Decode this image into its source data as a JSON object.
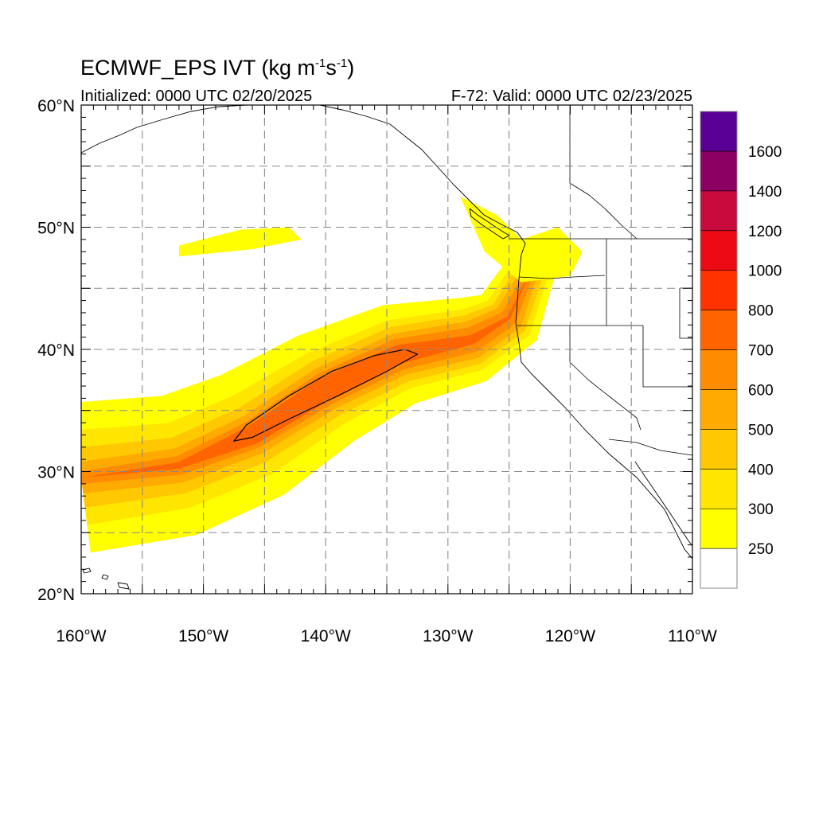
{
  "title": {
    "main": "ECMWF_EPS IVT (kg m",
    "exp1": "-1",
    "mid": "s",
    "exp2": "-1",
    "end": ")"
  },
  "subtitle": {
    "initialized": "Initialized: 0000 UTC 02/20/2025",
    "valid": "F-72: Valid: 0000 UTC 02/23/2025"
  },
  "map": {
    "lon_range": [
      -160,
      -110
    ],
    "lat_range": [
      20,
      60
    ],
    "grid_spacing_deg": 5,
    "lon_tick_labels": [
      "160°W",
      "150°W",
      "140°W",
      "130°W",
      "120°W",
      "110°W"
    ],
    "lat_tick_labels": [
      "20°N",
      "30°N",
      "40°N",
      "50°N",
      "60°N"
    ],
    "grid": true
  },
  "colorbar": {
    "orientation": "vertical",
    "placement": "right",
    "levels": [
      250,
      300,
      400,
      500,
      600,
      700,
      800,
      1000,
      1200,
      1400,
      1600
    ],
    "labels": [
      "250",
      "300",
      "400",
      "500",
      "600",
      "700",
      "800",
      "1000",
      "1200",
      "1400",
      "1600"
    ],
    "colors": [
      "#ffffff",
      "#ffff00",
      "#ffe600",
      "#ffc800",
      "#ffaa00",
      "#ff8c00",
      "#ff6400",
      "#ff3200",
      "#ee0a14",
      "#c80a3c",
      "#8c0064",
      "#5a0096"
    ]
  },
  "atmospheric_river": {
    "axis_lonlat": [
      [
        -160,
        29.5
      ],
      [
        -152,
        30.5
      ],
      [
        -146,
        33
      ],
      [
        -140,
        36.8
      ],
      [
        -134,
        39.6
      ],
      [
        -128,
        40.8
      ],
      [
        -125,
        42.6
      ],
      [
        -123,
        47
      ]
    ],
    "core_contour_lonlat": [
      [
        -147.5,
        32.5
      ],
      [
        -146.5,
        33.8
      ],
      [
        -143,
        36.2
      ],
      [
        -139.5,
        38.2
      ],
      [
        -136,
        39.5
      ],
      [
        -133.5,
        40
      ],
      [
        -132.5,
        39.6
      ],
      [
        -135,
        38.2
      ],
      [
        -139,
        36.2
      ],
      [
        -143,
        34.3
      ],
      [
        -146,
        32.8
      ]
    ],
    "contour_level": 800
  }
}
